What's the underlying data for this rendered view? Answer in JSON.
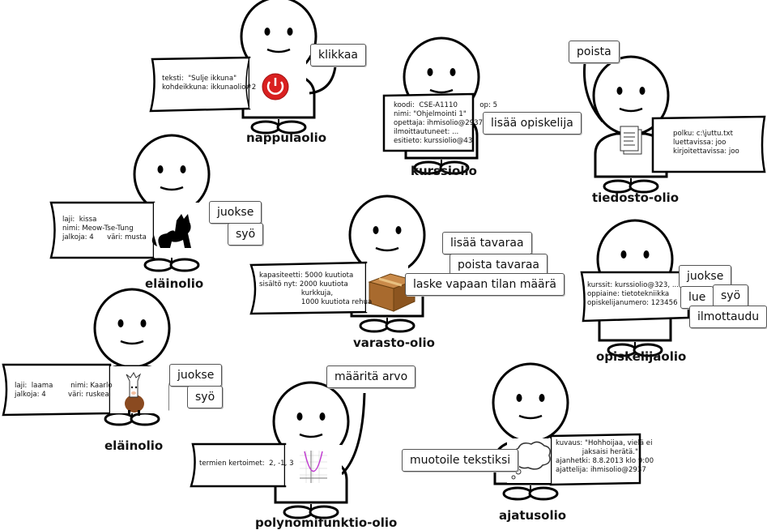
{
  "objects": {
    "nappula": {
      "title": "nappulaolio",
      "methods": [
        "klikkaa"
      ],
      "lines": [
        "teksti:  \"Sulje ikkuna\"",
        "kohdeikkuna: ikkunaolio#2"
      ]
    },
    "kurssi": {
      "title": "kurssiolio",
      "methods": [
        "lisää opiskelija"
      ],
      "lines": [
        "koodi:  CSE-A1110          op: 5",
        "nimi: \"Ohjelmointi 1\"",
        "opettaja: ihmisolio@2937",
        "ilmoittautuneet: ...",
        "esitieto: kurssiolio@43"
      ]
    },
    "tiedosto": {
      "title": "tiedosto-olio",
      "methods": [
        "poista"
      ],
      "lines": [
        "polku: c:\\juttu.txt",
        "luettavissa: joo",
        "kirjoitettavissa: joo"
      ]
    },
    "elain1": {
      "title": "eläinolio",
      "methods": [
        "juokse",
        "syö"
      ],
      "lines": [
        "laji:  kissa",
        "nimi: Meow-Tse-Tung",
        "jalkoja: 4      väri: musta"
      ]
    },
    "varasto": {
      "title": "varasto-olio",
      "methods": [
        "lisää tavaraa",
        "poista tavaraa",
        "laske vapaan tilan määrä"
      ],
      "lines": [
        "kapasiteetti: 5000 kuutiota",
        "sisältö nyt: 2000 kuutiota",
        "                   kurkkuja,",
        "                   1000 kuutiota rehua"
      ]
    },
    "opiskelija": {
      "title": "opiskelijaolio",
      "methods": [
        "juokse",
        "lue",
        "syö",
        "ilmottaudu"
      ],
      "lines": [
        "kurssit: kurssiolio@323, ...",
        "oppiaine: tietotekniikka",
        "opiskelijanumero: 123456"
      ]
    },
    "elain2": {
      "title": "eläinolio",
      "methods": [
        "juokse",
        "syö"
      ],
      "lines": [
        "laji:  laama        nimi: Kaarlo",
        "jalkoja: 4          väri: ruskea"
      ]
    },
    "polynomi": {
      "title": "polynomifunktio-olio",
      "methods": [
        "määritä arvo"
      ],
      "lines": [
        "termien kertoimet:  2, -1, 3"
      ]
    },
    "ajatus": {
      "title": "ajatusolio",
      "methods": [
        "muotoile tekstiksi"
      ],
      "lines": [
        "kuvaus: \"Hohhoijaa, vielä ei",
        "            jaksaisi herätä.\"",
        "ajanhetki: 8.8.2013 klo 9:00",
        "ajattelija: ihmisolio@2937"
      ]
    }
  },
  "icons": [
    "power-icon",
    "document-icon",
    "cat-icon",
    "box-icon",
    "llama-icon",
    "parabola-icon",
    "thought-cloud-icon"
  ],
  "colors": {
    "power_red": "#d92020",
    "box_brown": "#a86a2e",
    "llama_brown": "#8a4a20",
    "curve": "#c03ad0"
  }
}
